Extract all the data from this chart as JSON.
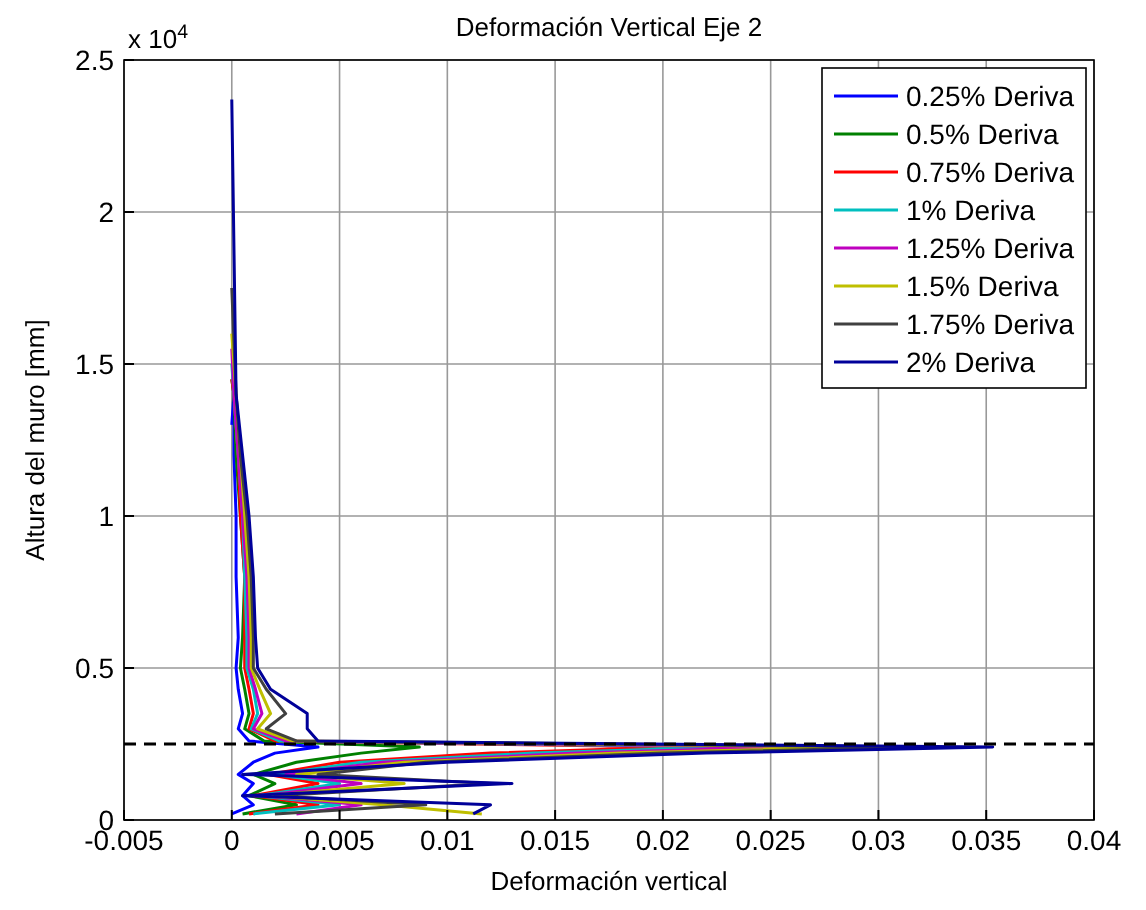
{
  "chart_data": {
    "type": "line",
    "title": "Deformación Vertical Eje 2",
    "xlabel": "Deformación vertical",
    "ylabel": "Altura del muro [mm]",
    "annotations": [
      "x 10$^{4}$"
    ],
    "xlim": [
      -0.005,
      0.04
    ],
    "xticks": [
      -0.005,
      0,
      0.005,
      0.01,
      0.015,
      0.02,
      0.025,
      0.03,
      0.035,
      0.04
    ],
    "ylim": [
      0,
      2.5
    ],
    "yticks": [
      0,
      0.5,
      1,
      1.5,
      2,
      2.5
    ],
    "grid": true,
    "legend": "top right",
    "line_style": "solid",
    "ref_lines": [
      {
        "axis": "y",
        "value": 0.25,
        "color": "#000000",
        "line_style": "dashed"
      }
    ],
    "series": [
      {
        "name": "0.25% Deriva",
        "color": "#0000ff",
        "x": [
          0,
          0.001,
          0.0005,
          0.001,
          0.0003,
          0.001,
          0.002,
          0.004,
          0.0008,
          0.0003,
          0.0005,
          0.0003,
          0.0002,
          0.0003,
          0.0002,
          0.0002,
          0.0001,
          0.0001,
          0
        ],
        "values": [
          0.02,
          0.05,
          0.08,
          0.12,
          0.15,
          0.19,
          0.22,
          0.24,
          0.26,
          0.3,
          0.35,
          0.43,
          0.5,
          0.6,
          0.8,
          1.0,
          1.2,
          1.4,
          1.3
        ]
      },
      {
        "name": "0.5% Deriva",
        "color": "#008000",
        "x": [
          0.0005,
          0.003,
          0.0008,
          0.002,
          0.001,
          0.003,
          0.006,
          0.0087,
          0.0015,
          0.0006,
          0.0008,
          0.0006,
          0.0004,
          0.0005,
          0.0006,
          0.0004,
          0.0002,
          0.0001,
          0
        ],
        "values": [
          0.02,
          0.05,
          0.08,
          0.12,
          0.15,
          0.19,
          0.22,
          0.24,
          0.26,
          0.3,
          0.35,
          0.43,
          0.5,
          0.6,
          0.8,
          1.0,
          1.2,
          1.4,
          1.45
        ]
      },
      {
        "name": "0.75% Deriva",
        "color": "#ff0000",
        "x": [
          0.0008,
          0.004,
          0.001,
          0.004,
          0.0017,
          0.005,
          0.012,
          0.0207,
          0.002,
          0.0008,
          0.001,
          0.0008,
          0.0006,
          0.0006,
          0.0006,
          0.0004,
          0.0003,
          0.0001,
          0
        ],
        "values": [
          0.02,
          0.05,
          0.08,
          0.12,
          0.15,
          0.19,
          0.22,
          0.24,
          0.26,
          0.3,
          0.35,
          0.43,
          0.5,
          0.6,
          0.8,
          1.0,
          1.2,
          1.4,
          1.45
        ]
      },
      {
        "name": "1% Deriva",
        "color": "#00bfbf",
        "x": [
          0.001,
          0.005,
          0.0012,
          0.005,
          0.002,
          0.006,
          0.014,
          0.0232,
          0.0022,
          0.0009,
          0.0012,
          0.001,
          0.0007,
          0.0007,
          0.0006,
          0.0005,
          0.0003,
          0.0001,
          0
        ],
        "values": [
          0.02,
          0.05,
          0.08,
          0.12,
          0.15,
          0.19,
          0.22,
          0.24,
          0.26,
          0.3,
          0.35,
          0.43,
          0.5,
          0.6,
          0.8,
          1.0,
          1.2,
          1.4,
          1.5
        ]
      },
      {
        "name": "1.25% Deriva",
        "color": "#bf00bf",
        "x": [
          0.003,
          0.006,
          0.0014,
          0.006,
          0.0025,
          0.007,
          0.016,
          0.0257,
          0.0025,
          0.001,
          0.0014,
          0.0011,
          0.0008,
          0.0008,
          0.0007,
          0.0005,
          0.0003,
          0.0001,
          0
        ],
        "values": [
          0.02,
          0.05,
          0.08,
          0.12,
          0.15,
          0.19,
          0.22,
          0.24,
          0.26,
          0.3,
          0.35,
          0.43,
          0.5,
          0.6,
          0.8,
          1.0,
          1.2,
          1.4,
          1.55
        ]
      },
      {
        "name": "1.5% Deriva",
        "color": "#bfbf00",
        "x": [
          0.0116,
          0.007,
          0.0016,
          0.008,
          0.003,
          0.008,
          0.018,
          0.0294,
          0.0028,
          0.0012,
          0.0018,
          0.0013,
          0.0009,
          0.0009,
          0.0008,
          0.0006,
          0.0004,
          0.0002,
          0
        ],
        "values": [
          0.02,
          0.05,
          0.08,
          0.12,
          0.15,
          0.19,
          0.22,
          0.24,
          0.26,
          0.3,
          0.35,
          0.43,
          0.5,
          0.6,
          0.8,
          1.0,
          1.2,
          1.4,
          1.6
        ]
      },
      {
        "name": "1.75% Deriva",
        "color": "#404040",
        "x": [
          0.002,
          0.009,
          0.002,
          0.012,
          0.004,
          0.009,
          0.02,
          0.0319,
          0.003,
          0.0016,
          0.0025,
          0.0016,
          0.001,
          0.001,
          0.0009,
          0.0007,
          0.0004,
          0.0002,
          0
        ],
        "values": [
          0.02,
          0.05,
          0.08,
          0.12,
          0.15,
          0.19,
          0.22,
          0.24,
          0.26,
          0.3,
          0.35,
          0.43,
          0.5,
          0.6,
          0.8,
          1.0,
          1.2,
          1.4,
          1.75
        ]
      },
      {
        "name": "2% Deriva",
        "color": "#000099",
        "x": [
          0.0112,
          0.012,
          0.0005,
          0.013,
          0.0005,
          0.01,
          0.022,
          0.0353,
          0.004,
          0.0035,
          0.0035,
          0.0018,
          0.0012,
          0.0011,
          0.001,
          0.0008,
          0.0005,
          0.0002,
          0
        ],
        "values": [
          0.02,
          0.05,
          0.08,
          0.12,
          0.15,
          0.19,
          0.22,
          0.24,
          0.26,
          0.3,
          0.35,
          0.43,
          0.5,
          0.6,
          0.8,
          1.0,
          1.2,
          1.4,
          2.37
        ]
      }
    ]
  }
}
